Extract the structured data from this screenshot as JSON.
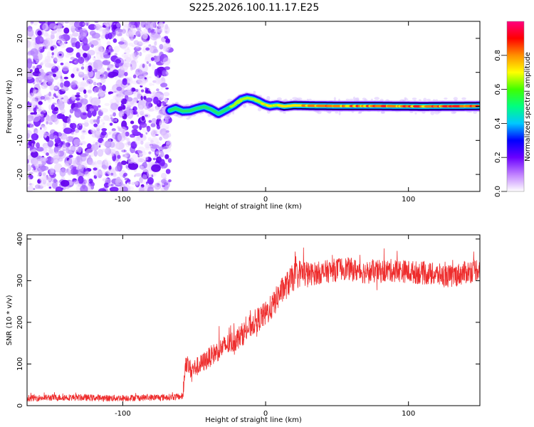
{
  "title": "S225.2026.100.11.17.E25",
  "chart_data": [
    {
      "type": "heatmap",
      "name": "spectrogram",
      "xlabel": "Height of straight line (km)",
      "ylabel": "Frequency (Hz)",
      "xlim": [
        -167,
        150
      ],
      "ylim": [
        -25,
        25
      ],
      "xticks": [
        -100,
        0,
        100
      ],
      "yticks": [
        -20,
        -10,
        0,
        10,
        20
      ],
      "noise_region_x": [
        -167,
        -67
      ],
      "signal_region_x": [
        -67,
        150
      ],
      "signal_track": {
        "x": [
          -67,
          -63,
          -58,
          -53,
          -48,
          -43,
          -38,
          -33,
          -28,
          -22,
          -17,
          -13,
          -9,
          -5,
          -1,
          3,
          8,
          13,
          20,
          30,
          50,
          80,
          110,
          150
        ],
        "freq_hz": [
          -1.2,
          -0.6,
          -1.4,
          -1.3,
          -0.6,
          -0.1,
          -0.9,
          -2.1,
          -1.0,
          0.4,
          2.0,
          2.5,
          2.2,
          1.5,
          0.6,
          0.1,
          0.4,
          0.0,
          0.3,
          0.2,
          0.1,
          0.1,
          0.0,
          0.1
        ]
      },
      "colorbar": {
        "label": "Normalized spectral amplitude",
        "range": [
          0.0,
          1.0
        ],
        "ticks": [
          0.0,
          0.2,
          0.4,
          0.6,
          0.8
        ],
        "tick_labels": [
          "0.0",
          "0.2",
          "0.4",
          "0.6",
          "0.8"
        ],
        "colors": [
          "#ffffff",
          "#c080ff",
          "#6a00ff",
          "#0000ff",
          "#00c8ff",
          "#00ff80",
          "#40ff00",
          "#ffff00",
          "#ff9000",
          "#ff0000",
          "#ff0080"
        ]
      }
    },
    {
      "type": "line",
      "name": "snr",
      "xlabel": "Height of straight line (km)",
      "ylabel": "SNR (10 * v/v)",
      "xlim": [
        -167,
        150
      ],
      "ylim": [
        0,
        410
      ],
      "xticks": [
        -100,
        0,
        100
      ],
      "yticks": [
        0,
        100,
        200,
        300,
        400
      ],
      "series": [
        {
          "name": "SNR",
          "color": "#ee2c2c",
          "x": [
            -167,
            -140,
            -110,
            -90,
            -70,
            -58,
            -56,
            -52,
            -45,
            -38,
            -30,
            -22,
            -15,
            -8,
            0,
            5,
            10,
            15,
            20,
            25,
            30,
            40,
            55,
            70,
            90,
            110,
            130,
            150
          ],
          "values": [
            18,
            20,
            18,
            19,
            20,
            22,
            105,
            85,
            100,
            120,
            140,
            155,
            175,
            200,
            220,
            240,
            270,
            290,
            310,
            320,
            315,
            320,
            330,
            320,
            325,
            318,
            310,
            330
          ]
        }
      ]
    }
  ]
}
